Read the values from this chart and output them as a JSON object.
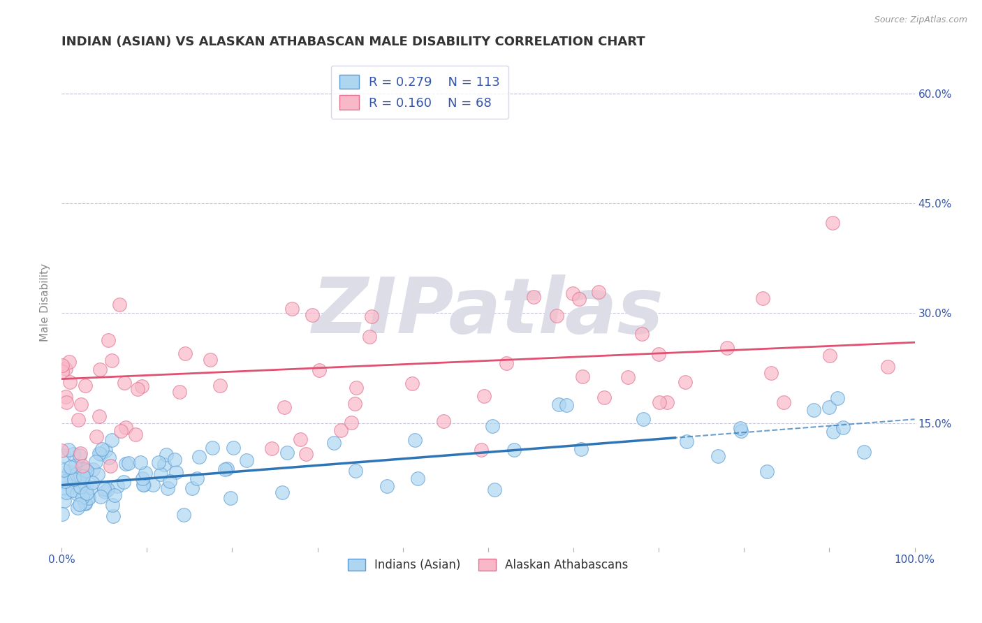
{
  "title": "INDIAN (ASIAN) VS ALASKAN ATHABASCAN MALE DISABILITY CORRELATION CHART",
  "source_text": "Source: ZipAtlas.com",
  "ylabel": "Male Disability",
  "xlim": [
    0.0,
    1.0
  ],
  "ylim": [
    -0.02,
    0.65
  ],
  "yticks": [
    0.15,
    0.3,
    0.45,
    0.6
  ],
  "ytick_labels": [
    "15.0%",
    "30.0%",
    "45.0%",
    "60.0%"
  ],
  "xtick_positions": [
    0.0,
    0.1,
    0.2,
    0.3,
    0.4,
    0.5,
    0.6,
    0.7,
    0.8,
    0.9,
    1.0
  ],
  "xtick_labels": [
    "0.0%",
    "",
    "",
    "",
    "",
    "",
    "",
    "",
    "",
    "",
    "100.0%"
  ],
  "blue_R": 0.279,
  "blue_N": 113,
  "pink_R": 0.16,
  "pink_N": 68,
  "blue_fill_color": "#AED6F1",
  "pink_fill_color": "#F9B8C8",
  "blue_edge_color": "#5B9BD5",
  "pink_edge_color": "#E07090",
  "blue_line_color": "#2E75B6",
  "pink_line_color": "#E05070",
  "blue_label": "Indians (Asian)",
  "pink_label": "Alaskan Athabascans",
  "background_color": "#FFFFFF",
  "grid_color": "#C8C8D8",
  "watermark_text": "ZIPatlas",
  "watermark_color": "#DDDDE8",
  "legend_text_color": "#3355AA",
  "axis_tick_color": "#3355AA",
  "title_color": "#333333",
  "ylabel_color": "#888888",
  "source_color": "#999999"
}
